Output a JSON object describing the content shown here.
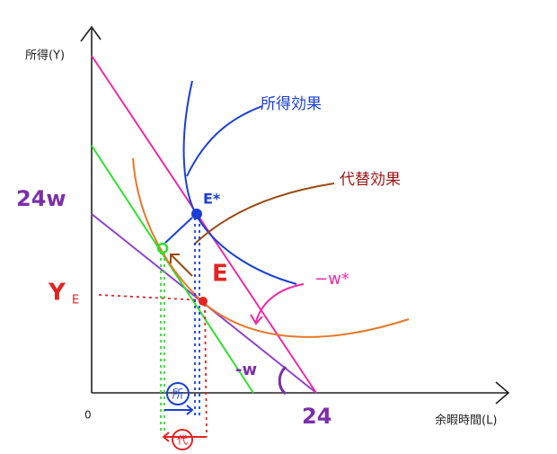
{
  "axes": {
    "y_label": "所得(Y)",
    "x_label": "余暇時間(L)",
    "origin": "0",
    "x_intercept": "24",
    "y_intercept": "24w"
  },
  "labels": {
    "income_effect": "所得効果",
    "substitution_effect": "代替効果",
    "e_star": "E*",
    "e": "E",
    "y_e": "Y",
    "y_e_sub": "E",
    "slope_w": "-w",
    "slope_w_star": "−w*",
    "income_mark": "所",
    "substitution_mark": "代"
  }
}
